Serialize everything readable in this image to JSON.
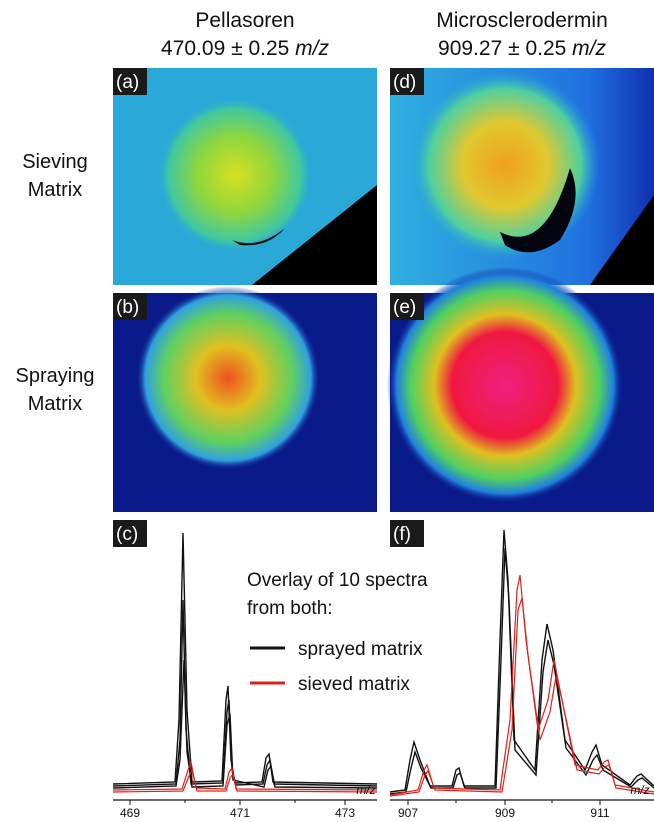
{
  "columns": [
    {
      "compound": "Pellasoren",
      "mass": "470.09 ± 0.25",
      "unit": "m/z"
    },
    {
      "compound": "Microsclerodermin",
      "mass": "909.27 ± 0.25",
      "unit": "m/z"
    }
  ],
  "rows": [
    {
      "line1": "Sieving",
      "line2": "Matrix"
    },
    {
      "line1": "Spraying",
      "line2": "Matrix"
    }
  ],
  "panels": [
    "(a)",
    "(b)",
    "(c)",
    "(d)",
    "(e)",
    "(f)"
  ],
  "legend": {
    "line1": "Overlay of 10 spectra",
    "line2": "from both:",
    "items": [
      "sprayed matrix",
      "sieved matrix"
    ]
  },
  "axes": [
    {
      "ticks": [
        "469",
        "471",
        "473"
      ],
      "unit": "m/z"
    },
    {
      "ticks": [
        "907",
        "909",
        "911"
      ],
      "unit": "m/z"
    }
  ]
}
